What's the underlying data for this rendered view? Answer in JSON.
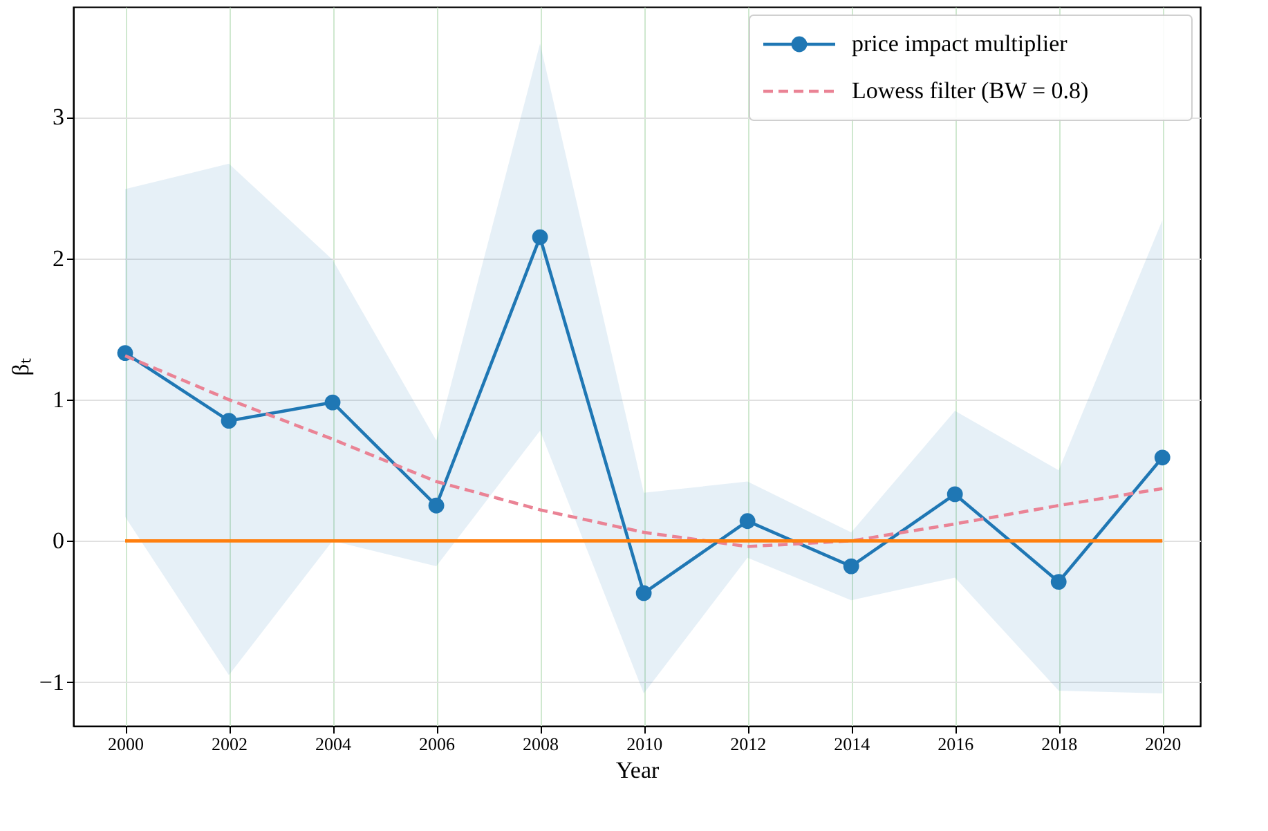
{
  "chart_data": {
    "type": "line",
    "xlabel": "Year",
    "ylabel": "βₜ",
    "x": [
      2000,
      2002,
      2004,
      2006,
      2008,
      2010,
      2012,
      2014,
      2016,
      2018,
      2020
    ],
    "series": [
      {
        "name": "price impact multiplier",
        "color": "#1f77b4",
        "marker": "circle",
        "line_style": "solid",
        "values": [
          1.33,
          0.85,
          0.98,
          0.25,
          2.15,
          -0.37,
          0.14,
          -0.18,
          0.33,
          -0.29,
          0.59
        ],
        "lower": [
          0.17,
          -0.95,
          0.0,
          -0.18,
          0.78,
          -1.08,
          -0.12,
          -0.42,
          -0.26,
          -1.06,
          -1.08
        ],
        "upper": [
          2.49,
          2.67,
          1.99,
          0.71,
          3.52,
          0.34,
          0.42,
          0.06,
          0.92,
          0.5,
          2.27
        ]
      },
      {
        "name": "Lowess filter (BW = 0.8)",
        "color": "#ea8395",
        "marker": "none",
        "line_style": "dashed",
        "values": [
          1.31,
          1.0,
          0.72,
          0.42,
          0.22,
          0.06,
          -0.04,
          0.0,
          0.12,
          0.25,
          0.37
        ]
      },
      {
        "color": "#ff7f0e",
        "marker": "none",
        "line_style": "solid",
        "values": [
          0,
          0,
          0,
          0,
          0,
          0,
          0,
          0,
          0,
          0,
          0
        ]
      }
    ],
    "xlim": [
      1999.0,
      2020.73
    ],
    "xticks": [
      2000,
      2002,
      2004,
      2006,
      2008,
      2010,
      2012,
      2014,
      2016,
      2018,
      2020
    ],
    "ylim": [
      -1.31,
      3.78
    ],
    "yticks": [
      -1,
      0,
      1,
      2,
      3
    ],
    "grid": true,
    "legend": "top right"
  }
}
